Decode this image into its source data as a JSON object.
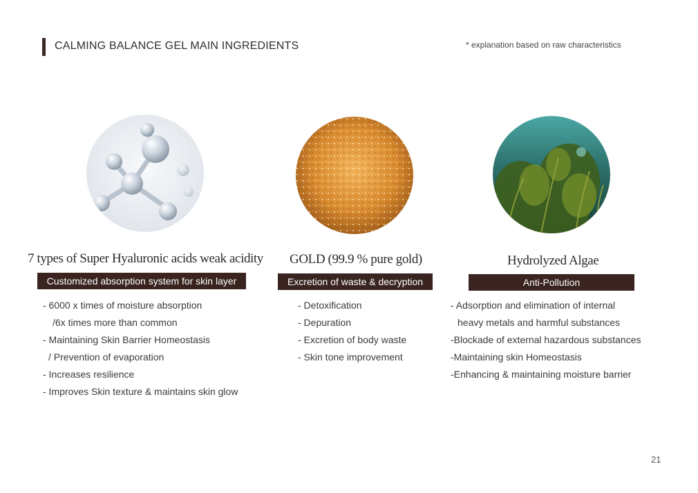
{
  "header": {
    "title": "CALMING BALANCE GEL MAIN INGREDIENTS",
    "note": "* explanation based on raw characteristics"
  },
  "ingredients": [
    {
      "image_icon": "hyaluronic-molecule-image",
      "name": "7 types of Super Hyaluronic acids weak acidity",
      "badge": "Customized absorption system for skin layer",
      "bullets": [
        "- 6000 x times of moisture absorption",
        "/6x times more than common",
        "- Maintaining Skin Barrier Homeostasis",
        "/ Prevention of evaporation",
        "- Increases resilience",
        "- Improves Skin texture & maintains skin glow"
      ]
    },
    {
      "image_icon": "gold-flakes-image",
      "name": "GOLD (99.9 % pure gold)",
      "badge": "Excretion of waste & decryption",
      "bullets": [
        "- Detoxification",
        "- Depuration",
        "- Excretion of body waste",
        "- Skin tone improvement"
      ]
    },
    {
      "image_icon": "algae-underwater-image",
      "name": "Hydrolyzed Algae",
      "badge": "Anti-Pollution",
      "bullets": [
        "- Adsorption and elimination of internal",
        "heavy metals and harmful substances",
        "-Blockade of external hazardous substances",
        "-Maintaining skin Homeostasis",
        "-Enhancing & maintaining moisture barrier"
      ]
    }
  ],
  "colors": {
    "badge_background": "#3a2420",
    "title_bar": "#3b2a24",
    "text": "#3a3a3a"
  },
  "page_number": "21"
}
